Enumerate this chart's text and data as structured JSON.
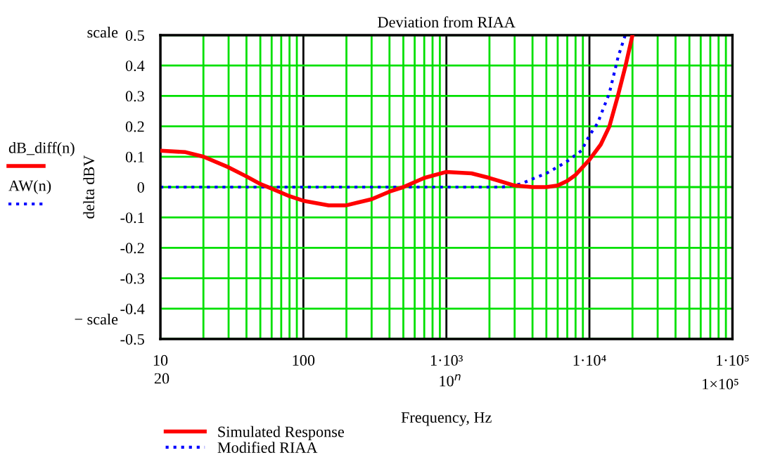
{
  "chart_data": {
    "type": "line",
    "title": "Deviation from RIAA",
    "xlabel": "Frequency, Hz",
    "ylabel": "delta dBV",
    "annotations": [
      "scale",
      "− scale",
      "dB_diff(n)",
      "AW(n)",
      "20",
      "10$^{n}$",
      "1×10⁵"
    ],
    "log": "x",
    "xlim": [
      10,
      100000
    ],
    "xticks": [
      10,
      100,
      {
        "value": 1000,
        "label": "1·10³"
      },
      {
        "value": 10000,
        "label": "1·10⁴"
      },
      {
        "value": 100000,
        "label": "1·10⁵"
      }
    ],
    "ylim": [
      -0.5,
      0.5
    ],
    "yticks": [
      -0.5,
      -0.4,
      -0.3,
      -0.2,
      -0.1,
      0,
      0.1,
      0.2,
      0.3,
      0.4,
      0.5
    ],
    "grid": true,
    "legend": "bottom",
    "series": [
      {
        "name": "Simulated Response",
        "color": "#ff0000",
        "line_style": "solid",
        "x": [
          10,
          15,
          20,
          30,
          40,
          50,
          60,
          80,
          100,
          150,
          200,
          300,
          400,
          500,
          700,
          1000,
          1500,
          2000,
          3000,
          4000,
          5000,
          6000,
          7000,
          8000,
          10000,
          12000,
          13800,
          15800,
          17900,
          20000
        ],
        "values": [
          0.12,
          0.115,
          0.1,
          0.065,
          0.035,
          0.01,
          -0.005,
          -0.03,
          -0.045,
          -0.06,
          -0.06,
          -0.04,
          -0.015,
          0.0,
          0.03,
          0.05,
          0.045,
          0.03,
          0.005,
          0.0,
          0.0,
          0.005,
          0.02,
          0.04,
          0.09,
          0.14,
          0.2,
          0.3,
          0.4,
          0.5
        ]
      },
      {
        "name": "Modified RIAA",
        "color": "#0000ff",
        "line_style": "dotted",
        "x": [
          10,
          100,
          1000,
          2000,
          2450,
          3300,
          4150,
          5000,
          6900,
          8800,
          10000,
          11400,
          13800,
          15900,
          17800
        ],
        "values": [
          0,
          0,
          0,
          0,
          0.0,
          0.01,
          0.03,
          0.045,
          0.083,
          0.12,
          0.17,
          0.21,
          0.31,
          0.43,
          0.5
        ]
      }
    ]
  }
}
